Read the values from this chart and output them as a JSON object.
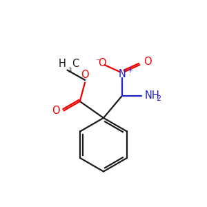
{
  "background_color": "#ffffff",
  "bond_color": "#1a1a1a",
  "red_color": "#ee0000",
  "blue_color": "#2222cc",
  "figsize": [
    3.0,
    3.0
  ],
  "dpi": 100,
  "xlim": [
    0,
    10
  ],
  "ylim": [
    0,
    10
  ],
  "lw": 1.6,
  "fs": 10.5,
  "fs_s": 8.0
}
